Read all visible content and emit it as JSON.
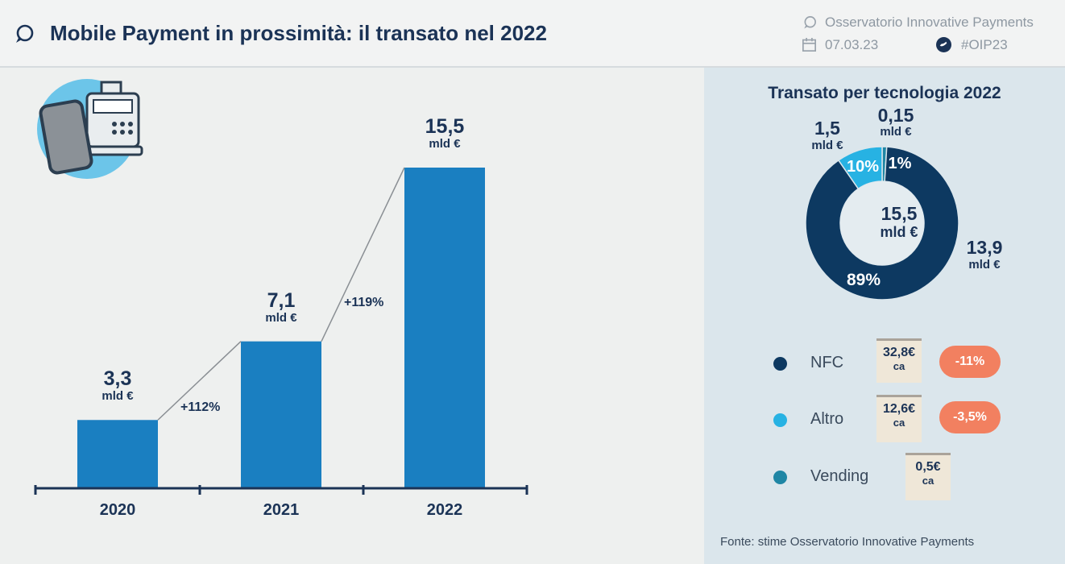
{
  "header": {
    "title": "Mobile Payment in prossimità: il transato nel 2022",
    "brand": "Osservatorio Innovative Payments",
    "date": "07.03.23",
    "hashtag": "#OIP23"
  },
  "chart_data": [
    {
      "type": "bar",
      "categories": [
        "2020",
        "2021",
        "2022"
      ],
      "values": [
        3.3,
        7.1,
        15.5
      ],
      "value_labels": [
        "3,3",
        "7,1",
        "15,5"
      ],
      "unit_label": "mld €",
      "growth_labels": [
        "+112%",
        "+119%"
      ],
      "colors": {
        "bar": "#1a7fc1",
        "axis": "#1b3356"
      }
    },
    {
      "type": "pie",
      "title": "Transato per tecnologia 2022",
      "total_label": "15,5",
      "total_unit": "mld €",
      "slices": [
        {
          "name": "NFC",
          "value": 13.9,
          "value_label": "13,9",
          "unit": "mld €",
          "percent_label": "89%",
          "color": "#0d3961"
        },
        {
          "name": "Altro",
          "value": 1.5,
          "value_label": "1,5",
          "unit": "mld €",
          "percent_label": "10%",
          "color": "#27b2e3"
        },
        {
          "name": "Vending",
          "value": 0.15,
          "value_label": "0,15",
          "unit": "mld €",
          "percent_label": "1%",
          "color": "#1f86a5"
        }
      ]
    }
  ],
  "legend": [
    {
      "name": "NFC",
      "receipt": "32,8€",
      "ca": "ca",
      "change": "-11%",
      "color": "#0d3961"
    },
    {
      "name": "Altro",
      "receipt": "12,6€",
      "ca": "ca",
      "change": "-3,5%",
      "color": "#27b2e3"
    },
    {
      "name": "Vending",
      "receipt": "0,5€",
      "ca": "ca",
      "change": "",
      "color": "#1f86a5"
    }
  ],
  "source": "Fonte: stime Osservatorio Innovative Payments"
}
